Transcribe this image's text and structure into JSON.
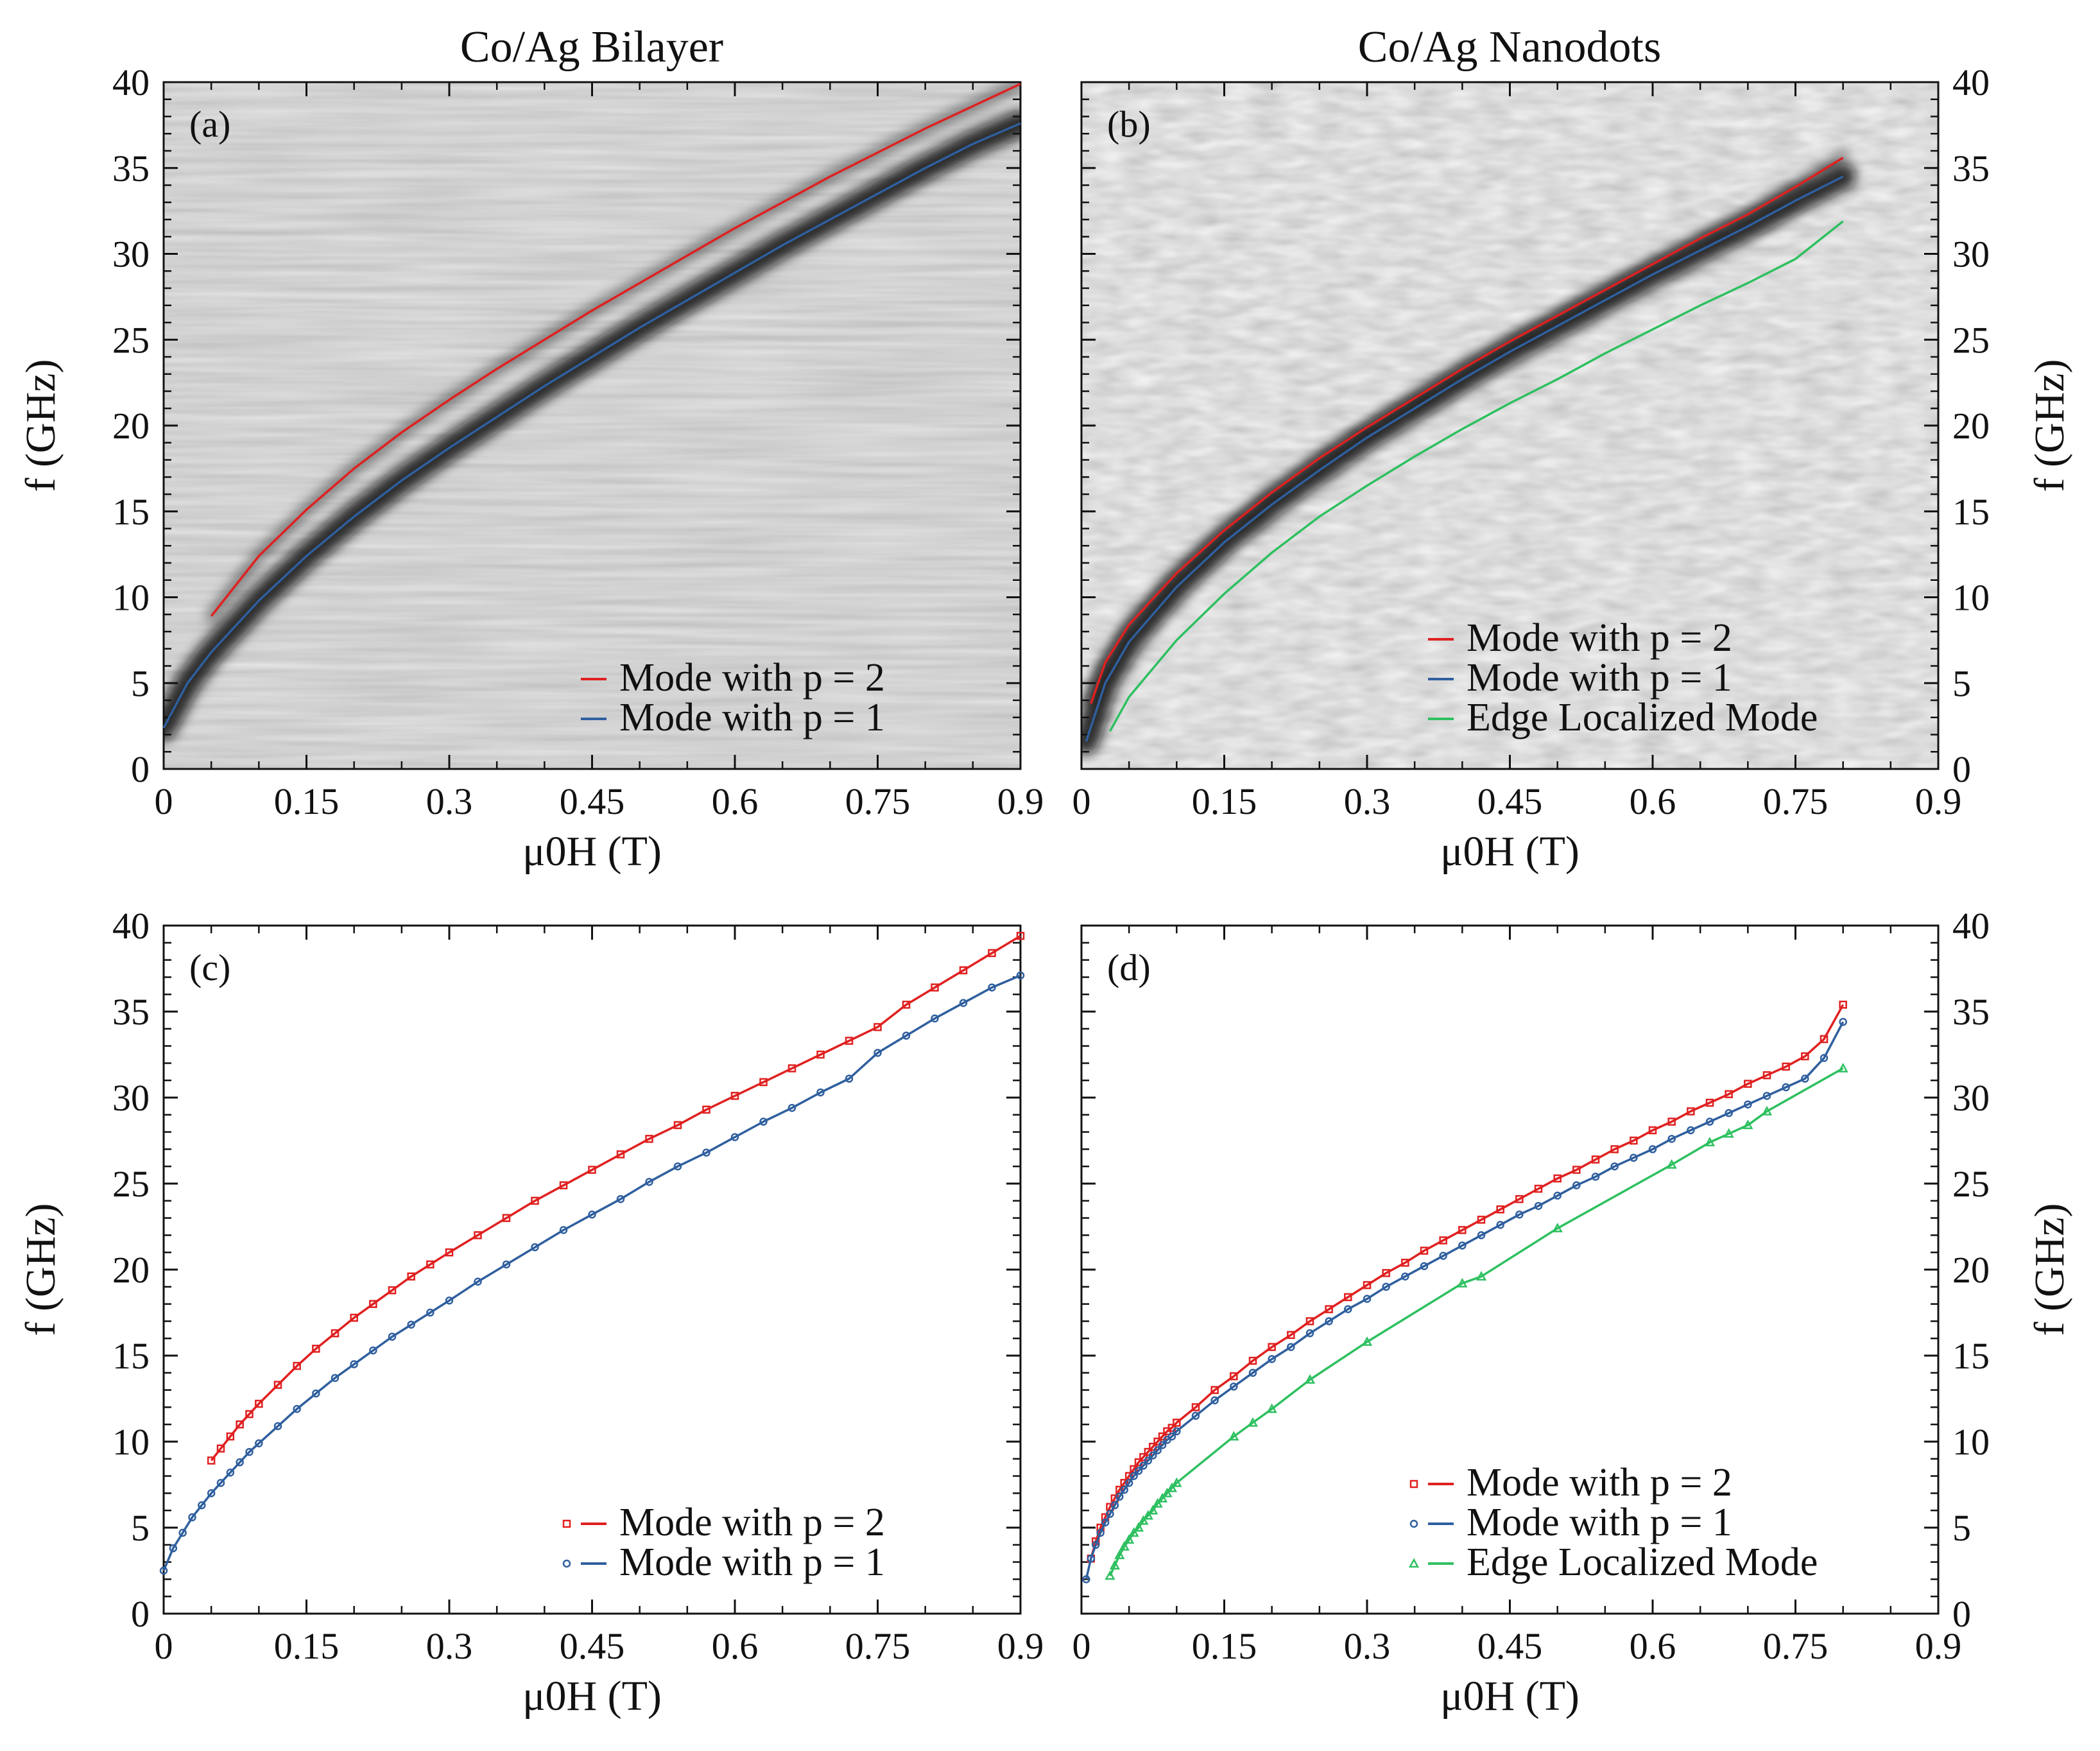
{
  "figure_titles": [
    "Co/Ag Bilayer",
    "Co/Ag Nanodots"
  ],
  "colors": {
    "mode_p2": "#e02020",
    "mode_p1": "#2f5f9e",
    "edge": "#2ec060",
    "axis": "#111111"
  },
  "chart_data": [
    {
      "panel": "(a)",
      "type": "heatmap",
      "title": "Co/Ag Bilayer",
      "xlabel": "μ0H (T)",
      "ylabel": "f (GHz)",
      "ylabel_side": "left",
      "xlim": [
        0,
        0.9
      ],
      "ylim": [
        0,
        40
      ],
      "xticks": [
        "0",
        "0.15",
        "0.3",
        "0.45",
        "0.6",
        "0.75",
        "0.9"
      ],
      "yticks": [
        "0",
        "5",
        "10",
        "15",
        "20",
        "25",
        "30",
        "35",
        "40"
      ],
      "legend_position": "bottom-right",
      "series": [
        {
          "name": "Mode with p = 2",
          "color": "#e02020",
          "marker": "none",
          "x": [
            0.05,
            0.1,
            0.15,
            0.2,
            0.25,
            0.3,
            0.35,
            0.4,
            0.45,
            0.5,
            0.55,
            0.6,
            0.65,
            0.7,
            0.75,
            0.8,
            0.85,
            0.9
          ],
          "y": [
            8.9,
            12.4,
            15.1,
            17.5,
            19.6,
            21.5,
            23.3,
            25.0,
            26.7,
            28.3,
            29.9,
            31.5,
            33.0,
            34.5,
            35.9,
            37.3,
            38.6,
            39.9
          ]
        },
        {
          "name": "Mode with p = 1",
          "color": "#2f5f9e",
          "marker": "none",
          "x": [
            0,
            0.025,
            0.05,
            0.1,
            0.15,
            0.2,
            0.25,
            0.3,
            0.35,
            0.4,
            0.45,
            0.5,
            0.55,
            0.6,
            0.65,
            0.7,
            0.75,
            0.8,
            0.85,
            0.9
          ],
          "y": [
            2.4,
            5.0,
            6.8,
            9.8,
            12.4,
            14.7,
            16.8,
            18.7,
            20.5,
            22.3,
            24.0,
            25.7,
            27.3,
            28.9,
            30.5,
            32.0,
            33.5,
            35.0,
            36.4,
            37.6
          ]
        }
      ]
    },
    {
      "panel": "(b)",
      "type": "heatmap",
      "title": "Co/Ag Nanodots",
      "xlabel": "μ0H (T)",
      "ylabel": "f (GHz)",
      "ylabel_side": "right",
      "xlim": [
        0,
        0.9
      ],
      "ylim": [
        0,
        40
      ],
      "xticks": [
        "0",
        "0.15",
        "0.3",
        "0.45",
        "0.6",
        "0.75",
        "0.9"
      ],
      "yticks": [
        "0",
        "5",
        "10",
        "15",
        "20",
        "25",
        "30",
        "35",
        "40"
      ],
      "legend_position": "bottom-right",
      "series": [
        {
          "name": "Mode with p = 2",
          "color": "#e02020",
          "marker": "none",
          "x": [
            0.01,
            0.025,
            0.05,
            0.1,
            0.15,
            0.2,
            0.25,
            0.3,
            0.35,
            0.4,
            0.45,
            0.5,
            0.55,
            0.6,
            0.65,
            0.7,
            0.75,
            0.8
          ],
          "y": [
            3.8,
            6.2,
            8.4,
            11.4,
            13.9,
            16.1,
            18.1,
            19.9,
            21.6,
            23.3,
            24.9,
            26.4,
            27.9,
            29.4,
            30.9,
            32.3,
            33.9,
            35.6
          ]
        },
        {
          "name": "Mode with p = 1",
          "color": "#2f5f9e",
          "marker": "none",
          "x": [
            0.005,
            0.025,
            0.05,
            0.1,
            0.15,
            0.2,
            0.25,
            0.3,
            0.35,
            0.4,
            0.45,
            0.5,
            0.55,
            0.6,
            0.65,
            0.7,
            0.75,
            0.8
          ],
          "y": [
            1.6,
            5.0,
            7.4,
            10.6,
            13.2,
            15.4,
            17.4,
            19.3,
            21.0,
            22.7,
            24.3,
            25.8,
            27.3,
            28.8,
            30.2,
            31.6,
            33.1,
            34.5
          ]
        },
        {
          "name": "Edge Localized Mode",
          "color": "#2ec060",
          "marker": "none",
          "x": [
            0.03,
            0.05,
            0.1,
            0.15,
            0.2,
            0.25,
            0.3,
            0.35,
            0.4,
            0.45,
            0.5,
            0.55,
            0.6,
            0.65,
            0.7,
            0.75,
            0.8
          ],
          "y": [
            2.2,
            4.2,
            7.5,
            10.2,
            12.6,
            14.7,
            16.5,
            18.2,
            19.8,
            21.3,
            22.7,
            24.2,
            25.6,
            27.0,
            28.3,
            29.7,
            31.9
          ]
        }
      ]
    },
    {
      "panel": "(c)",
      "type": "scatter",
      "title": "",
      "xlabel": "μ0H (T)",
      "ylabel": "f (GHz)",
      "ylabel_side": "left",
      "xlim": [
        0,
        0.9
      ],
      "ylim": [
        0,
        40
      ],
      "xticks": [
        "0",
        "0.15",
        "0.3",
        "0.45",
        "0.6",
        "0.75",
        "0.9"
      ],
      "yticks": [
        "0",
        "5",
        "10",
        "15",
        "20",
        "25",
        "30",
        "35",
        "40"
      ],
      "legend_position": "bottom-right",
      "series": [
        {
          "name": "Mode with p = 2",
          "color": "#e02020",
          "marker": "square",
          "x": [
            0.05,
            0.06,
            0.07,
            0.08,
            0.09,
            0.1,
            0.12,
            0.14,
            0.16,
            0.18,
            0.2,
            0.22,
            0.24,
            0.26,
            0.28,
            0.3,
            0.33,
            0.36,
            0.39,
            0.42,
            0.45,
            0.48,
            0.51,
            0.54,
            0.57,
            0.6,
            0.63,
            0.66,
            0.69,
            0.72,
            0.75,
            0.78,
            0.81,
            0.84,
            0.87,
            0.9
          ],
          "y": [
            8.9,
            9.6,
            10.3,
            11.0,
            11.6,
            12.2,
            13.3,
            14.4,
            15.4,
            16.3,
            17.2,
            18.0,
            18.8,
            19.6,
            20.3,
            21.0,
            22.0,
            23.0,
            24.0,
            24.9,
            25.8,
            26.7,
            27.6,
            28.4,
            29.3,
            30.1,
            30.9,
            31.7,
            32.5,
            33.3,
            34.1,
            35.4,
            36.4,
            37.4,
            38.4,
            39.4
          ]
        },
        {
          "name": "Mode with p = 1",
          "color": "#2f5f9e",
          "marker": "circle",
          "x": [
            0.0,
            0.01,
            0.02,
            0.03,
            0.04,
            0.05,
            0.06,
            0.07,
            0.08,
            0.09,
            0.1,
            0.12,
            0.14,
            0.16,
            0.18,
            0.2,
            0.22,
            0.24,
            0.26,
            0.28,
            0.3,
            0.33,
            0.36,
            0.39,
            0.42,
            0.45,
            0.48,
            0.51,
            0.54,
            0.57,
            0.6,
            0.63,
            0.66,
            0.69,
            0.72,
            0.75,
            0.78,
            0.81,
            0.84,
            0.87,
            0.9
          ],
          "y": [
            2.5,
            3.8,
            4.7,
            5.6,
            6.3,
            7.0,
            7.6,
            8.2,
            8.8,
            9.4,
            9.9,
            10.9,
            11.9,
            12.8,
            13.7,
            14.5,
            15.3,
            16.1,
            16.8,
            17.5,
            18.2,
            19.3,
            20.3,
            21.3,
            22.3,
            23.2,
            24.1,
            25.1,
            26.0,
            26.8,
            27.7,
            28.6,
            29.4,
            30.3,
            31.1,
            32.6,
            33.6,
            34.6,
            35.5,
            36.4,
            37.1
          ]
        }
      ]
    },
    {
      "panel": "(d)",
      "type": "scatter",
      "title": "",
      "xlabel": "μ0H (T)",
      "ylabel": "f (GHz)",
      "ylabel_side": "right",
      "xlim": [
        0,
        0.9
      ],
      "ylim": [
        0,
        40
      ],
      "xticks": [
        "0",
        "0.15",
        "0.3",
        "0.45",
        "0.6",
        "0.75",
        "0.9"
      ],
      "yticks": [
        "0",
        "5",
        "10",
        "15",
        "20",
        "25",
        "30",
        "35",
        "40"
      ],
      "legend_position": "bottom-right",
      "series": [
        {
          "name": "Mode with p = 2",
          "color": "#e02020",
          "marker": "square",
          "x": [
            0.01,
            0.015,
            0.02,
            0.025,
            0.03,
            0.035,
            0.04,
            0.045,
            0.05,
            0.055,
            0.06,
            0.065,
            0.07,
            0.075,
            0.08,
            0.085,
            0.09,
            0.095,
            0.1,
            0.12,
            0.14,
            0.16,
            0.18,
            0.2,
            0.22,
            0.24,
            0.26,
            0.28,
            0.3,
            0.32,
            0.34,
            0.36,
            0.38,
            0.4,
            0.42,
            0.44,
            0.46,
            0.48,
            0.5,
            0.52,
            0.54,
            0.56,
            0.58,
            0.6,
            0.62,
            0.64,
            0.66,
            0.68,
            0.7,
            0.72,
            0.74,
            0.76,
            0.78,
            0.8
          ],
          "y": [
            3.2,
            4.2,
            5.0,
            5.6,
            6.2,
            6.7,
            7.2,
            7.6,
            8.0,
            8.4,
            8.8,
            9.1,
            9.4,
            9.7,
            10.0,
            10.3,
            10.6,
            10.8,
            11.1,
            12.0,
            13.0,
            13.8,
            14.7,
            15.5,
            16.2,
            17.0,
            17.7,
            18.4,
            19.1,
            19.8,
            20.4,
            21.1,
            21.7,
            22.3,
            22.9,
            23.5,
            24.1,
            24.7,
            25.3,
            25.8,
            26.4,
            27.0,
            27.5,
            28.1,
            28.6,
            29.2,
            29.7,
            30.2,
            30.8,
            31.3,
            31.8,
            32.4,
            33.4,
            35.4
          ]
        },
        {
          "name": "Mode with p = 1",
          "color": "#2f5f9e",
          "marker": "circle",
          "x": [
            0.005,
            0.01,
            0.015,
            0.02,
            0.025,
            0.03,
            0.035,
            0.04,
            0.045,
            0.05,
            0.055,
            0.06,
            0.065,
            0.07,
            0.075,
            0.08,
            0.085,
            0.09,
            0.095,
            0.1,
            0.12,
            0.14,
            0.16,
            0.18,
            0.2,
            0.22,
            0.24,
            0.26,
            0.28,
            0.3,
            0.32,
            0.34,
            0.36,
            0.38,
            0.4,
            0.42,
            0.44,
            0.46,
            0.48,
            0.5,
            0.52,
            0.54,
            0.56,
            0.58,
            0.6,
            0.62,
            0.64,
            0.66,
            0.68,
            0.7,
            0.72,
            0.74,
            0.76,
            0.78,
            0.8
          ],
          "y": [
            2.0,
            3.2,
            4.0,
            4.7,
            5.3,
            5.8,
            6.3,
            6.8,
            7.2,
            7.6,
            8.0,
            8.3,
            8.6,
            8.9,
            9.2,
            9.5,
            9.8,
            10.1,
            10.3,
            10.6,
            11.5,
            12.4,
            13.2,
            14.0,
            14.8,
            15.5,
            16.3,
            17.0,
            17.7,
            18.3,
            19.0,
            19.6,
            20.2,
            20.8,
            21.4,
            22.0,
            22.6,
            23.2,
            23.7,
            24.3,
            24.9,
            25.4,
            26.0,
            26.5,
            27.0,
            27.6,
            28.1,
            28.6,
            29.1,
            29.6,
            30.1,
            30.6,
            31.1,
            32.3,
            34.4
          ]
        },
        {
          "name": "Edge Localized Mode",
          "color": "#2ec060",
          "marker": "triangle",
          "x": [
            0.03,
            0.035,
            0.04,
            0.045,
            0.05,
            0.055,
            0.06,
            0.065,
            0.07,
            0.075,
            0.08,
            0.085,
            0.09,
            0.095,
            0.1,
            0.16,
            0.18,
            0.2,
            0.24,
            0.3,
            0.4,
            0.42,
            0.5,
            0.62,
            0.66,
            0.68,
            0.7,
            0.72,
            0.8
          ],
          "y": [
            2.2,
            2.8,
            3.4,
            3.9,
            4.3,
            4.7,
            5.0,
            5.4,
            5.7,
            6.0,
            6.4,
            6.7,
            7.0,
            7.3,
            7.6,
            10.3,
            11.1,
            11.9,
            13.6,
            15.8,
            19.2,
            19.6,
            22.4,
            26.1,
            27.4,
            27.9,
            28.4,
            29.2,
            31.7
          ]
        }
      ]
    }
  ]
}
